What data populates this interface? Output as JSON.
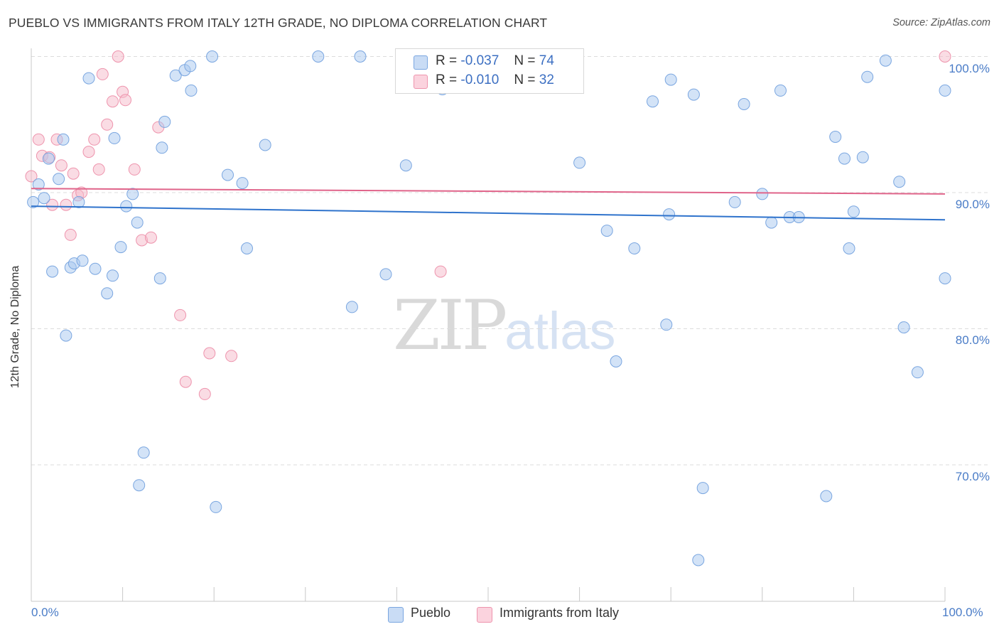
{
  "title": "PUEBLO VS IMMIGRANTS FROM ITALY 12TH GRADE, NO DIPLOMA CORRELATION CHART",
  "source": "Source: ZipAtlas.com",
  "watermark": {
    "zip": "ZIP",
    "atlas": "atlas"
  },
  "stats": {
    "rows": [
      {
        "r_label": "R =",
        "r_value": "-0.037",
        "n_label": "N =",
        "n_value": "74",
        "color": "#a8c7ef"
      },
      {
        "r_label": "R =",
        "r_value": "-0.010",
        "n_label": "N =",
        "n_value": "32",
        "color": "#f6b9ca"
      }
    ]
  },
  "legend": {
    "pueblo": "Pueblo",
    "italy": "Immigrants from Italy"
  },
  "colors": {
    "pueblo_fill": "#a8c7ef",
    "pueblo_stroke": "#7aa6e0",
    "pueblo_line": "#2f73cc",
    "italy_fill": "#f6b9ca",
    "italy_stroke": "#ee94ad",
    "italy_line": "#e0648a",
    "grid": "#dcdcdc",
    "tick_text": "#4a7cc7"
  },
  "chart_data": {
    "type": "scatter",
    "title": "PUEBLO VS IMMIGRANTS FROM ITALY 12TH GRADE, NO DIPLOMA CORRELATION CHART",
    "xlabel": "",
    "ylabel": "12th Grade, No Diploma",
    "xlim": [
      0,
      100
    ],
    "ylim": [
      60.5,
      101.5
    ],
    "x_tick_labels": [
      "0.0%",
      "100.0%"
    ],
    "y_ticks": [
      70,
      80,
      90,
      100
    ],
    "y_tick_labels": [
      "70.0%",
      "80.0%",
      "90.0%",
      "100.0%"
    ],
    "grid": "horizontal dashed",
    "legend_position": "bottom-center",
    "series": [
      {
        "name": "Pueblo",
        "r": -0.037,
        "n": 74,
        "trend": {
          "x": [
            0,
            100
          ],
          "y": [
            89.0,
            88.0
          ]
        },
        "points": [
          [
            0.2,
            89.3
          ],
          [
            0.8,
            90.6
          ],
          [
            1.4,
            89.6
          ],
          [
            1.9,
            92.5
          ],
          [
            2.3,
            84.2
          ],
          [
            3.0,
            91.0
          ],
          [
            3.5,
            93.9
          ],
          [
            3.8,
            79.5
          ],
          [
            4.3,
            84.5
          ],
          [
            4.7,
            84.8
          ],
          [
            5.2,
            89.3
          ],
          [
            5.6,
            85.0
          ],
          [
            6.3,
            98.4
          ],
          [
            7.0,
            84.4
          ],
          [
            8.3,
            82.6
          ],
          [
            8.9,
            83.9
          ],
          [
            9.1,
            94.0
          ],
          [
            9.8,
            86.0
          ],
          [
            10.4,
            89.0
          ],
          [
            11.1,
            89.9
          ],
          [
            11.6,
            87.8
          ],
          [
            11.8,
            68.5
          ],
          [
            12.3,
            70.9
          ],
          [
            14.1,
            83.7
          ],
          [
            14.3,
            93.3
          ],
          [
            14.6,
            95.2
          ],
          [
            15.8,
            98.6
          ],
          [
            16.8,
            99.0
          ],
          [
            17.4,
            99.3
          ],
          [
            17.5,
            97.5
          ],
          [
            19.8,
            100.0
          ],
          [
            20.2,
            66.9
          ],
          [
            21.5,
            91.3
          ],
          [
            23.1,
            90.7
          ],
          [
            23.6,
            85.9
          ],
          [
            25.6,
            93.5
          ],
          [
            31.4,
            100.0
          ],
          [
            35.1,
            81.6
          ],
          [
            36.0,
            100.0
          ],
          [
            38.8,
            84.0
          ],
          [
            41.0,
            92.0
          ],
          [
            45.0,
            97.6
          ],
          [
            47.0,
            100.0
          ],
          [
            60.0,
            92.2
          ],
          [
            63.0,
            87.2
          ],
          [
            64.0,
            77.6
          ],
          [
            66.0,
            85.9
          ],
          [
            68.0,
            96.7
          ],
          [
            69.5,
            80.3
          ],
          [
            69.8,
            88.4
          ],
          [
            70.0,
            98.3
          ],
          [
            73.0,
            63.0
          ],
          [
            72.5,
            97.2
          ],
          [
            73.5,
            68.3
          ],
          [
            77.0,
            89.3
          ],
          [
            78.0,
            96.5
          ],
          [
            80.0,
            89.9
          ],
          [
            81.0,
            87.8
          ],
          [
            82.0,
            97.5
          ],
          [
            83.0,
            88.2
          ],
          [
            84.0,
            88.2
          ],
          [
            87.0,
            67.7
          ],
          [
            88.0,
            94.1
          ],
          [
            89.0,
            92.5
          ],
          [
            89.5,
            85.9
          ],
          [
            90.0,
            88.6
          ],
          [
            91.0,
            92.6
          ],
          [
            91.5,
            98.5
          ],
          [
            93.5,
            99.7
          ],
          [
            95.0,
            90.8
          ],
          [
            95.5,
            80.1
          ],
          [
            97.0,
            76.8
          ],
          [
            100.0,
            83.7
          ],
          [
            100.0,
            97.5
          ]
        ]
      },
      {
        "name": "Immigrants from Italy",
        "r": -0.01,
        "n": 32,
        "trend": {
          "x": [
            0,
            100
          ],
          "y": [
            90.3,
            89.9
          ]
        },
        "points": [
          [
            0.0,
            91.2
          ],
          [
            0.8,
            93.9
          ],
          [
            1.2,
            92.7
          ],
          [
            2.0,
            92.6
          ],
          [
            2.3,
            89.1
          ],
          [
            2.8,
            93.9
          ],
          [
            3.3,
            92.0
          ],
          [
            3.8,
            89.1
          ],
          [
            4.3,
            86.9
          ],
          [
            4.6,
            91.4
          ],
          [
            5.1,
            89.8
          ],
          [
            5.5,
            90.0
          ],
          [
            6.3,
            93.0
          ],
          [
            6.9,
            93.9
          ],
          [
            7.4,
            91.7
          ],
          [
            7.8,
            98.7
          ],
          [
            8.3,
            95.0
          ],
          [
            8.9,
            96.7
          ],
          [
            9.5,
            100.0
          ],
          [
            10.0,
            97.4
          ],
          [
            10.3,
            96.8
          ],
          [
            11.3,
            91.7
          ],
          [
            12.1,
            86.5
          ],
          [
            13.1,
            86.7
          ],
          [
            13.9,
            94.8
          ],
          [
            16.3,
            81.0
          ],
          [
            16.9,
            76.1
          ],
          [
            19.0,
            75.2
          ],
          [
            19.5,
            78.2
          ],
          [
            21.9,
            78.0
          ],
          [
            44.8,
            84.2
          ],
          [
            100.0,
            100.0
          ]
        ]
      }
    ]
  }
}
